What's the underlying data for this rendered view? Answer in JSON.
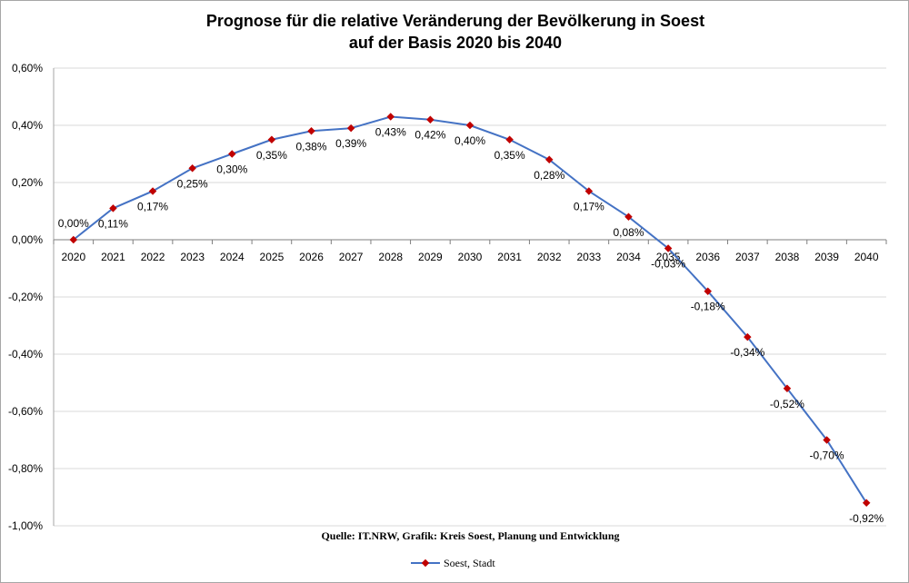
{
  "chart_data": {
    "type": "line",
    "title_line1": "Prognose für die relative Veränderung der Bevölkerung in Soest",
    "title_line2": "auf der Basis 2020 bis 2040",
    "source": "Quelle: IT.NRW, Grafik: Kreis Soest, Planung und Entwicklung",
    "x": [
      "2020",
      "2021",
      "2022",
      "2023",
      "2024",
      "2025",
      "2026",
      "2027",
      "2028",
      "2029",
      "2030",
      "2031",
      "2032",
      "2033",
      "2034",
      "2035",
      "2036",
      "2037",
      "2038",
      "2039",
      "2040"
    ],
    "series": [
      {
        "name": "Soest, Stadt",
        "values": [
          0.0,
          0.11,
          0.17,
          0.25,
          0.3,
          0.35,
          0.38,
          0.39,
          0.43,
          0.42,
          0.4,
          0.35,
          0.28,
          0.17,
          0.08,
          -0.03,
          -0.18,
          -0.34,
          -0.52,
          -0.7,
          -0.92
        ],
        "labels": [
          "0,00%",
          "0,11%",
          "0,17%",
          "0,25%",
          "0,30%",
          "0,35%",
          "0,38%",
          "0,39%",
          "0,43%",
          "0,42%",
          "0,40%",
          "0,35%",
          "0,28%",
          "0,17%",
          "0,08%",
          "-0,03%",
          "-0,18%",
          "-0,34%",
          "-0,52%",
          "-0,70%",
          "-0,92%"
        ],
        "line_color": "#4472c4",
        "marker_color": "#c00000"
      }
    ],
    "y_ticks": [
      "0,60%",
      "0,40%",
      "0,20%",
      "0,00%",
      "-0,20%",
      "-0,40%",
      "-0,60%",
      "-0,80%",
      "-1,00%"
    ],
    "ylim": [
      -1.0,
      0.6
    ],
    "grid": true,
    "legend_position": "bottom"
  }
}
